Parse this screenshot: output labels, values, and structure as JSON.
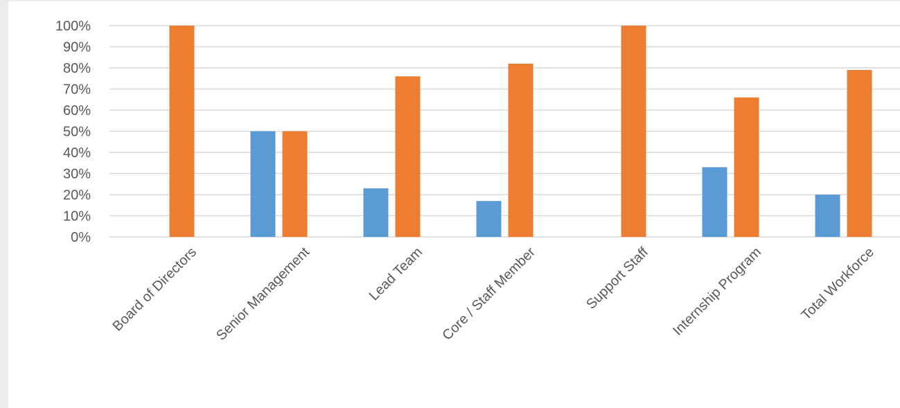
{
  "chart_data": {
    "type": "bar",
    "title": "",
    "xlabel": "",
    "ylabel": "",
    "ylim": [
      0,
      100
    ],
    "y_ticks": [
      "0%",
      "10%",
      "20%",
      "30%",
      "40%",
      "50%",
      "60%",
      "70%",
      "80%",
      "90%",
      "100%"
    ],
    "categories": [
      "Board of Directors",
      "Senior Management",
      "Lead Team",
      "Core / Staff Member",
      "Support Staff",
      "Internship Program",
      "Total Workforce"
    ],
    "series": [
      {
        "color": "#5b9bd5",
        "values": [
          0,
          50,
          23,
          17,
          0,
          33,
          20
        ]
      },
      {
        "color": "#ed7d31",
        "values": [
          100,
          50,
          76,
          82,
          100,
          66,
          79
        ]
      }
    ],
    "grid": true,
    "legend": "none"
  }
}
